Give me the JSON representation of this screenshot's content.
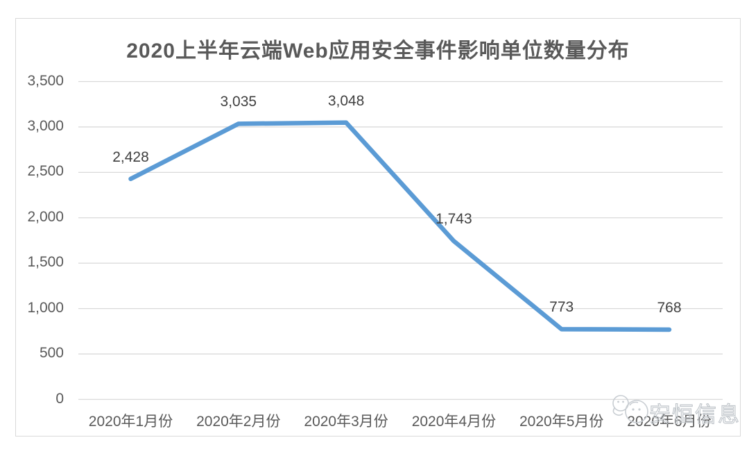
{
  "chart_data": {
    "type": "line",
    "title": "2020上半年云端Web应用安全事件影响单位数量分布",
    "categories": [
      "2020年1月份",
      "2020年2月份",
      "2020年3月份",
      "2020年4月份",
      "2020年5月份",
      "2020年6月份"
    ],
    "values": [
      2428,
      3035,
      3048,
      1743,
      773,
      768
    ],
    "data_labels": [
      "2,428",
      "3,035",
      "3,048",
      "1,743",
      "773",
      "768"
    ],
    "y_tick_labels": [
      "0",
      "500",
      "1,000",
      "1,500",
      "2,000",
      "2,500",
      "3,000",
      "3,500"
    ],
    "ylim": [
      0,
      3500
    ],
    "grid": true,
    "legend": false,
    "xlabel": "",
    "ylabel": "",
    "colors": {
      "line": "#5B9BD5",
      "grid": "#d9d9d9",
      "axis_text": "#595959",
      "data_label_text": "#404040",
      "title_text": "#595959",
      "frame": "#d9d9d9",
      "watermark": "#c2c7cc"
    }
  },
  "watermark": {
    "text": "安恒信息",
    "logo_icon": "anheng-mascot-logo-icon"
  }
}
